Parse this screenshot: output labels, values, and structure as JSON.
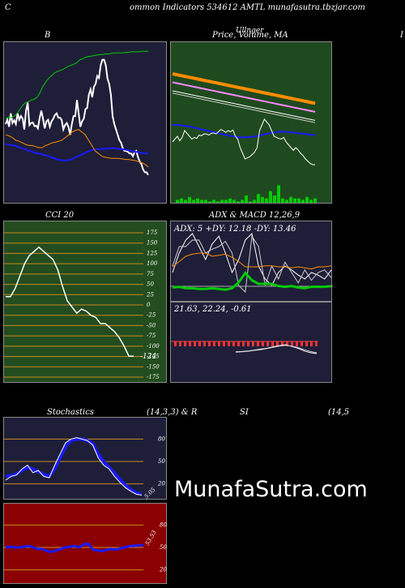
{
  "header": {
    "title": "ommon  Indicators 534612  AMTL  munafasutra.tbzjar.com",
    "left_marker": "C"
  },
  "titles": {
    "bb": "B",
    "price": "Price,  Volume,  MA",
    "price_overlay": "Ullnger",
    "right_edge": "I",
    "cci": "CCI 20",
    "adx": "ADX  & MACD 12,26,9",
    "stoch": "Stochastics",
    "stoch_params": "(14,3,3) & R",
    "si": "SI",
    "si_params": "(14,5"
  },
  "watermark": "MunafaSutra.com",
  "colors": {
    "bg": "#000000",
    "navy": "#1e1e38",
    "green_dark": "#1f4a1f",
    "green_mid": "#234d1f",
    "red_dark": "#8b0000",
    "orange": "#ff8c00",
    "lime": "#00cc00",
    "blue": "#1a1aff",
    "white": "#ffffff",
    "gray": "#aaaaaa"
  },
  "chart_data": [
    {
      "type": "line",
      "title": "B",
      "series": [
        {
          "color": "#ffffff",
          "values": [
            150,
            158,
            145,
            170,
            152,
            157,
            150,
            170,
            158,
            165,
            160,
            140,
            175,
            190,
            148,
            152,
            153,
            146,
            147,
            142,
            161,
            175,
            160,
            142,
            155,
            158,
            145,
            155,
            160,
            167,
            170,
            162,
            162,
            158,
            140,
            148,
            152,
            145,
            130,
            150,
            165,
            165,
            195,
            170,
            145,
            155,
            160,
            178,
            180,
            205,
            215,
            200,
            220,
            225,
            240,
            236,
            260,
            270,
            270,
            260,
            235,
            225,
            205,
            165,
            150,
            140,
            130,
            120,
            115,
            105,
            100,
            100,
            98,
            95,
            95,
            90,
            98,
            100,
            88,
            80,
            75,
            65,
            60,
            60,
            55
          ]
        },
        {
          "color": "#00cc00",
          "values": [
            160,
            163,
            162,
            165,
            170,
            178,
            185,
            190,
            192,
            195,
            196,
            200,
            208,
            220,
            228,
            235,
            240,
            245,
            248,
            250,
            252,
            255,
            258,
            260,
            262,
            265,
            270,
            272,
            275,
            276,
            277,
            278,
            279,
            280,
            280,
            281,
            281,
            282,
            283,
            283,
            283,
            283,
            284,
            284,
            285,
            285,
            285,
            285,
            286,
            286,
            286
          ]
        },
        {
          "color": "#1a1aff",
          "values": [
            112,
            112,
            111,
            110,
            110,
            108,
            107,
            105,
            104,
            103,
            100,
            100,
            98,
            96,
            95,
            95,
            94,
            92,
            91,
            90,
            88,
            87,
            85,
            84,
            83,
            82,
            82,
            82,
            83,
            84,
            86,
            88,
            90,
            92,
            94,
            96,
            98,
            100,
            101,
            102,
            103,
            103,
            104,
            104,
            104,
            104,
            105,
            105,
            105,
            104,
            104,
            103,
            103,
            102,
            101,
            100,
            100,
            98,
            98,
            97,
            96,
            96,
            95,
            95
          ]
        },
        {
          "color": "#ff8c00",
          "values": [
            130,
            128,
            125,
            120,
            118,
            115,
            112,
            110,
            110,
            108,
            106,
            106,
            110,
            112,
            115,
            116,
            118,
            120,
            125,
            130,
            135,
            138,
            140,
            135,
            130,
            120,
            110,
            100,
            95,
            90,
            88,
            87,
            86,
            86,
            86,
            85,
            84,
            84,
            83,
            82,
            80,
            78,
            75,
            70
          ]
        }
      ]
    },
    {
      "type": "line",
      "title": "Price,  Volume,  MA",
      "series": [
        {
          "color": "#ff8c00",
          "values": [
            230,
            228,
            226,
            224,
            222,
            220,
            218,
            216,
            214,
            212,
            210,
            208,
            206,
            204,
            202,
            200,
            198,
            196,
            194,
            192,
            190,
            188,
            186,
            184,
            182,
            180,
            178
          ]
        },
        {
          "color": "#ff88ff",
          "values": [
            215,
            213,
            211,
            209,
            207,
            205,
            203,
            201,
            199,
            197,
            195,
            193,
            191,
            189,
            187,
            185,
            183,
            181,
            179,
            177,
            175,
            173,
            171,
            169,
            167,
            165,
            163
          ]
        },
        {
          "color": "#ffffff",
          "values": [
            200,
            198,
            196,
            194,
            192,
            190,
            188,
            186,
            184,
            182,
            180,
            178,
            176,
            174,
            172,
            170,
            168,
            166,
            164,
            162,
            160,
            158,
            156,
            154,
            152,
            150,
            148
          ]
        },
        {
          "color": "#1a1aff",
          "values": [
            140,
            140,
            139,
            138,
            136,
            134,
            132,
            130,
            128,
            126,
            124,
            122,
            120,
            119,
            118,
            118,
            119,
            120,
            122,
            124,
            126,
            127,
            128,
            128,
            127,
            126,
            125,
            124,
            123,
            122
          ]
        },
        {
          "color": "#ffffff",
          "values": [
            110,
            115,
            120,
            112,
            118,
            130,
            125,
            120,
            115,
            118,
            116,
            122,
            121,
            124,
            124,
            122,
            125,
            126,
            124,
            128,
            132,
            130,
            127,
            130,
            128,
            131,
            120,
            115,
            100,
            90,
            80,
            82,
            84,
            88,
            92,
            100,
            130,
            140,
            150,
            145,
            140,
            130,
            120,
            118,
            116,
            115,
            118,
            110,
            105,
            100,
            95,
            100,
            96,
            90,
            86,
            80,
            76,
            72,
            70,
            70
          ]
        }
      ],
      "volume": [
        2,
        3,
        2,
        4,
        2,
        3,
        2,
        2,
        1,
        2,
        1,
        2,
        2,
        3,
        2,
        1,
        2,
        5,
        1,
        2,
        6,
        4,
        3,
        8,
        5,
        12,
        3,
        2,
        4,
        3,
        3,
        2,
        4,
        2,
        3
      ]
    },
    {
      "type": "line",
      "title": "CCI 20",
      "y_ticks": [
        175,
        150,
        125,
        100,
        75,
        50,
        25,
        0,
        -25,
        -50,
        -75,
        -100,
        -125,
        -150,
        -175
      ],
      "ylim": [
        -175,
        175
      ],
      "last_value_label": "-124",
      "values": [
        20,
        20,
        40,
        70,
        100,
        120,
        130,
        140,
        130,
        120,
        110,
        85,
        45,
        10,
        -5,
        -20,
        -10,
        -15,
        -25,
        -30,
        -45,
        -45,
        -55,
        -65,
        -80,
        -100,
        -124,
        -124
      ]
    },
    {
      "type": "line",
      "title": "ADX  & MACD 12,26,9",
      "adx_readout": "ADX: 5 +DY: 12.18  -DY: 13.46",
      "macd_readout": "21.63,  22.24,  -0.61",
      "adx_series": [
        {
          "color": "#00cc00",
          "values": [
            15,
            16,
            14,
            14,
            13,
            13,
            14,
            13,
            12,
            14,
            22,
            35,
            25,
            20,
            20,
            20,
            17,
            16,
            17,
            15,
            14,
            16,
            16,
            16,
            17
          ]
        },
        {
          "color": "#ff8c00",
          "values": [
            30,
            35,
            40,
            42,
            43,
            43,
            40,
            41,
            42,
            39,
            35,
            30,
            30,
            30,
            31,
            31,
            30,
            30,
            29,
            30,
            29,
            28,
            30,
            30,
            31
          ]
        }
      ],
      "macd_series": [
        {
          "color": "#ffffff",
          "values": [
            -40,
            -38,
            -35,
            -30,
            -25,
            -20,
            -12,
            -5,
            0,
            -10,
            -20,
            -35,
            -45,
            -50
          ]
        },
        {
          "color": "#cccccc",
          "values": [
            -42,
            -40,
            -37,
            -32,
            -28,
            -22,
            -15,
            -8,
            -3,
            -8,
            -16,
            -28,
            -38,
            -45
          ]
        }
      ]
    },
    {
      "type": "line",
      "title": "Stochastics (14,3,3) & R",
      "y_ticks": [
        80,
        50,
        20
      ],
      "ylim": [
        0,
        100
      ],
      "k_values": [
        25,
        30,
        32,
        40,
        45,
        35,
        38,
        30,
        28,
        45,
        60,
        75,
        80,
        82,
        80,
        78,
        72,
        55,
        45,
        40,
        30,
        22,
        15,
        10,
        6,
        5
      ],
      "d_values": [
        30,
        31,
        33,
        38,
        42,
        40,
        36,
        33,
        30,
        40,
        55,
        70,
        78,
        80,
        80,
        78,
        74,
        60,
        50,
        42,
        34,
        26,
        18,
        12,
        8,
        6
      ],
      "last_value_label": "5.05"
    },
    {
      "type": "line",
      "title": "SI (14,5",
      "y_ticks": [
        80,
        50,
        20
      ],
      "ylim": [
        0,
        100
      ],
      "values": [
        50,
        51,
        50,
        50,
        51,
        52,
        50,
        48,
        48,
        45,
        44,
        46,
        48,
        50,
        51,
        52,
        50,
        54,
        55,
        47,
        46,
        45,
        47,
        48,
        47,
        49,
        50,
        52,
        52,
        53,
        53
      ],
      "last_value_label": "53.53"
    }
  ]
}
